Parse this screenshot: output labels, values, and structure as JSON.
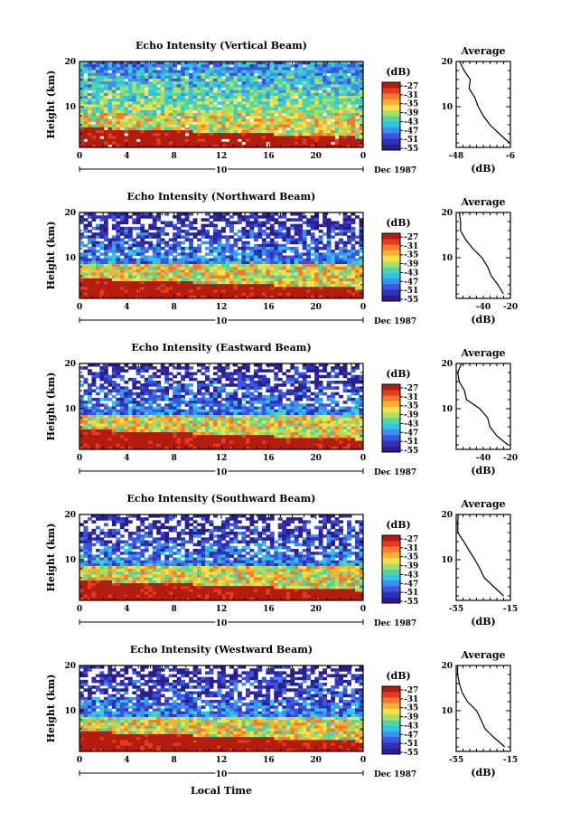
{
  "figure": {
    "xlabel": "Local Time",
    "date_label": "Dec 1987",
    "date_marker": "10"
  },
  "chart_data": [
    {
      "type": "heatmap",
      "title": "Echo Intensity (Vertical Beam)",
      "xlabel": "",
      "ylabel": "Height (km)",
      "xlim": [
        0,
        24
      ],
      "ylim": [
        1,
        20
      ],
      "x_ticks": [
        "0",
        "4",
        "8",
        "12",
        "16",
        "20",
        "0"
      ],
      "y_ticks": [
        "10",
        "20"
      ],
      "colorbar": {
        "title": "(dB)",
        "labels": [
          "-27",
          "-31",
          "-35",
          "-39",
          "-43",
          "-47",
          "-51",
          "-55"
        ]
      },
      "average": {
        "title": "Average",
        "xlabel": "(dB)",
        "xlim": [
          -48,
          -6
        ],
        "x_ticks": [
          "-48",
          "-6"
        ],
        "y_ticks": [
          "10",
          "20"
        ],
        "heights": [
          2,
          4,
          6,
          8,
          10,
          12,
          14,
          16,
          18,
          20
        ],
        "values": [
          -7,
          -15,
          -22,
          -27,
          -32,
          -34,
          -38,
          -37,
          -43,
          -46
        ]
      }
    },
    {
      "type": "heatmap",
      "title": "Echo Intensity (Northward Beam)",
      "xlabel": "",
      "ylabel": "Height (km)",
      "xlim": [
        0,
        24
      ],
      "ylim": [
        1,
        20
      ],
      "x_ticks": [
        "0",
        "4",
        "8",
        "12",
        "16",
        "20",
        "0"
      ],
      "y_ticks": [
        "10",
        "20"
      ],
      "colorbar": {
        "title": "(dB)",
        "labels": [
          "-27",
          "-31",
          "-35",
          "-39",
          "-43",
          "-47",
          "-51",
          "-55"
        ]
      },
      "average": {
        "title": "Average",
        "xlabel": "(dB)",
        "xlim": [
          -60,
          -20
        ],
        "x_ticks": [
          "-40",
          "-20"
        ],
        "y_ticks": [
          "10",
          "20"
        ],
        "heights": [
          2,
          4,
          6,
          8,
          10,
          12,
          14,
          16,
          18,
          20
        ],
        "values": [
          -24,
          -30,
          -34,
          -37,
          -42,
          -47,
          -53,
          -57,
          -58,
          -58
        ]
      }
    },
    {
      "type": "heatmap",
      "title": "Echo Intensity (Eastward Beam)",
      "xlabel": "",
      "ylabel": "Height (km)",
      "xlim": [
        0,
        24
      ],
      "ylim": [
        1,
        20
      ],
      "x_ticks": [
        "0",
        "4",
        "8",
        "12",
        "16",
        "20",
        "0"
      ],
      "y_ticks": [
        "10",
        "20"
      ],
      "colorbar": {
        "title": "(dB)",
        "labels": [
          "-27",
          "-31",
          "-35",
          "-39",
          "-43",
          "-47",
          "-51",
          "-55"
        ]
      },
      "average": {
        "title": "Average",
        "xlabel": "(dB)",
        "xlim": [
          -60,
          -20
        ],
        "x_ticks": [
          "-40",
          "-20"
        ],
        "y_ticks": [
          "10",
          "20"
        ],
        "heights": [
          2,
          4,
          6,
          8,
          10,
          12,
          14,
          16,
          18,
          20
        ],
        "values": [
          -23,
          -29,
          -35,
          -38,
          -43,
          -52,
          -55,
          -57,
          -58,
          -57
        ]
      }
    },
    {
      "type": "heatmap",
      "title": "Echo Intensity (Southward Beam)",
      "xlabel": "",
      "ylabel": "Height (km)",
      "xlim": [
        0,
        24
      ],
      "ylim": [
        1,
        20
      ],
      "x_ticks": [
        "0",
        "4",
        "8",
        "12",
        "16",
        "20",
        "0"
      ],
      "y_ticks": [
        "10",
        "20"
      ],
      "colorbar": {
        "title": "(dB)",
        "labels": [
          "-27",
          "-31",
          "-35",
          "-39",
          "-43",
          "-47",
          "-51",
          "-55"
        ]
      },
      "average": {
        "title": "Average",
        "xlabel": "(dB)",
        "xlim": [
          -55,
          -15
        ],
        "x_ticks": [
          "-55",
          "-15"
        ],
        "y_ticks": [
          "10",
          "20"
        ],
        "heights": [
          2,
          4,
          6,
          8,
          10,
          12,
          14,
          16,
          18,
          20
        ],
        "values": [
          -20,
          -28,
          -35,
          -37,
          -41,
          -46,
          -50,
          -53,
          -53,
          -54
        ]
      }
    },
    {
      "type": "heatmap",
      "title": "Echo Intensity (Westward Beam)",
      "xlabel": "",
      "ylabel": "Height (km)",
      "xlim": [
        0,
        24
      ],
      "ylim": [
        1,
        20
      ],
      "x_ticks": [
        "0",
        "4",
        "8",
        "12",
        "16",
        "20",
        "0"
      ],
      "y_ticks": [
        "10",
        "20"
      ],
      "colorbar": {
        "title": "(dB)",
        "labels": [
          "-27",
          "-31",
          "-35",
          "-39",
          "-43",
          "-47",
          "-51",
          "-55"
        ]
      },
      "average": {
        "title": "Average",
        "xlabel": "(dB)",
        "xlim": [
          -55,
          -15
        ],
        "x_ticks": [
          "-55",
          "-15"
        ],
        "y_ticks": [
          "10",
          "20"
        ],
        "heights": [
          2,
          4,
          6,
          8,
          10,
          12,
          14,
          16,
          18,
          20
        ],
        "values": [
          -20,
          -28,
          -34,
          -36,
          -41,
          -47,
          -50,
          -52,
          -53,
          -54
        ]
      }
    }
  ],
  "colors": {
    "scale": [
      "#b21d10",
      "#e63a1e",
      "#f57a2a",
      "#f9b034",
      "#f5e24a",
      "#a8e065",
      "#4fd6a8",
      "#2ec6e8",
      "#3d8ff0",
      "#3a55e0",
      "#3230b8",
      "#2a1f8a"
    ]
  }
}
